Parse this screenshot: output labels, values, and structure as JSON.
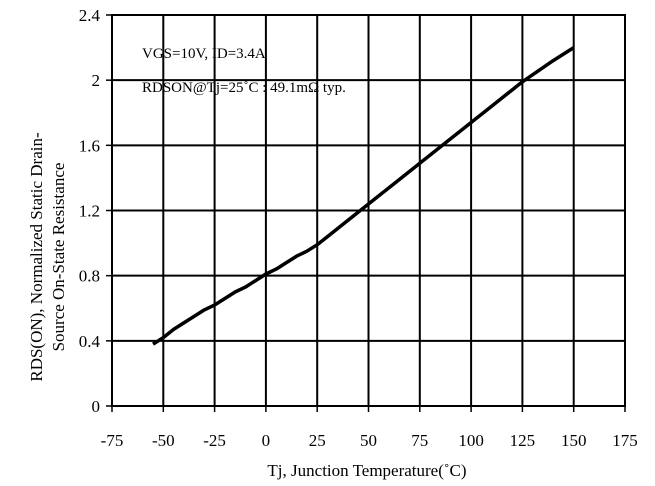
{
  "chart_data": {
    "type": "line",
    "xlabel": "Tj, Junction Temperature(˚C)",
    "ylabel_lines": [
      "RDS(ON), Normalized Static Drain-",
      "Source On-State Resistance"
    ],
    "xlim": [
      -75,
      175
    ],
    "ylim": [
      0,
      2.4
    ],
    "x_ticks": [
      -75,
      -50,
      -25,
      0,
      25,
      50,
      75,
      100,
      125,
      150,
      175
    ],
    "x_tick_labels": [
      "-75",
      "-50",
      "-25",
      "0",
      "25",
      "50",
      "75",
      "100",
      "125",
      "150",
      "175"
    ],
    "y_ticks": [
      0,
      0.4,
      0.8,
      1.2,
      1.6,
      2,
      2.4
    ],
    "y_tick_labels": [
      "0",
      "0.4",
      "0.8",
      "1.2",
      "1.6",
      "2",
      "2.4"
    ],
    "grid": true,
    "annotations": [
      "VGS=10V, ID=3.4A",
      "RDSON@Tj=25˚C : 49.1mΩ  typ."
    ],
    "series": [
      {
        "x": [
          -55,
          -50,
          -45,
          -40,
          -35,
          -30,
          -25,
          -20,
          -15,
          -10,
          -5,
          0,
          5,
          10,
          15,
          20,
          25,
          30,
          40,
          50,
          60,
          75,
          90,
          100,
          110,
          125,
          140,
          150
        ],
        "y": [
          0.38,
          0.42,
          0.47,
          0.51,
          0.55,
          0.59,
          0.62,
          0.66,
          0.7,
          0.73,
          0.77,
          0.81,
          0.84,
          0.88,
          0.92,
          0.95,
          0.99,
          1.04,
          1.14,
          1.24,
          1.34,
          1.49,
          1.64,
          1.74,
          1.84,
          1.99,
          2.12,
          2.2
        ]
      }
    ]
  }
}
